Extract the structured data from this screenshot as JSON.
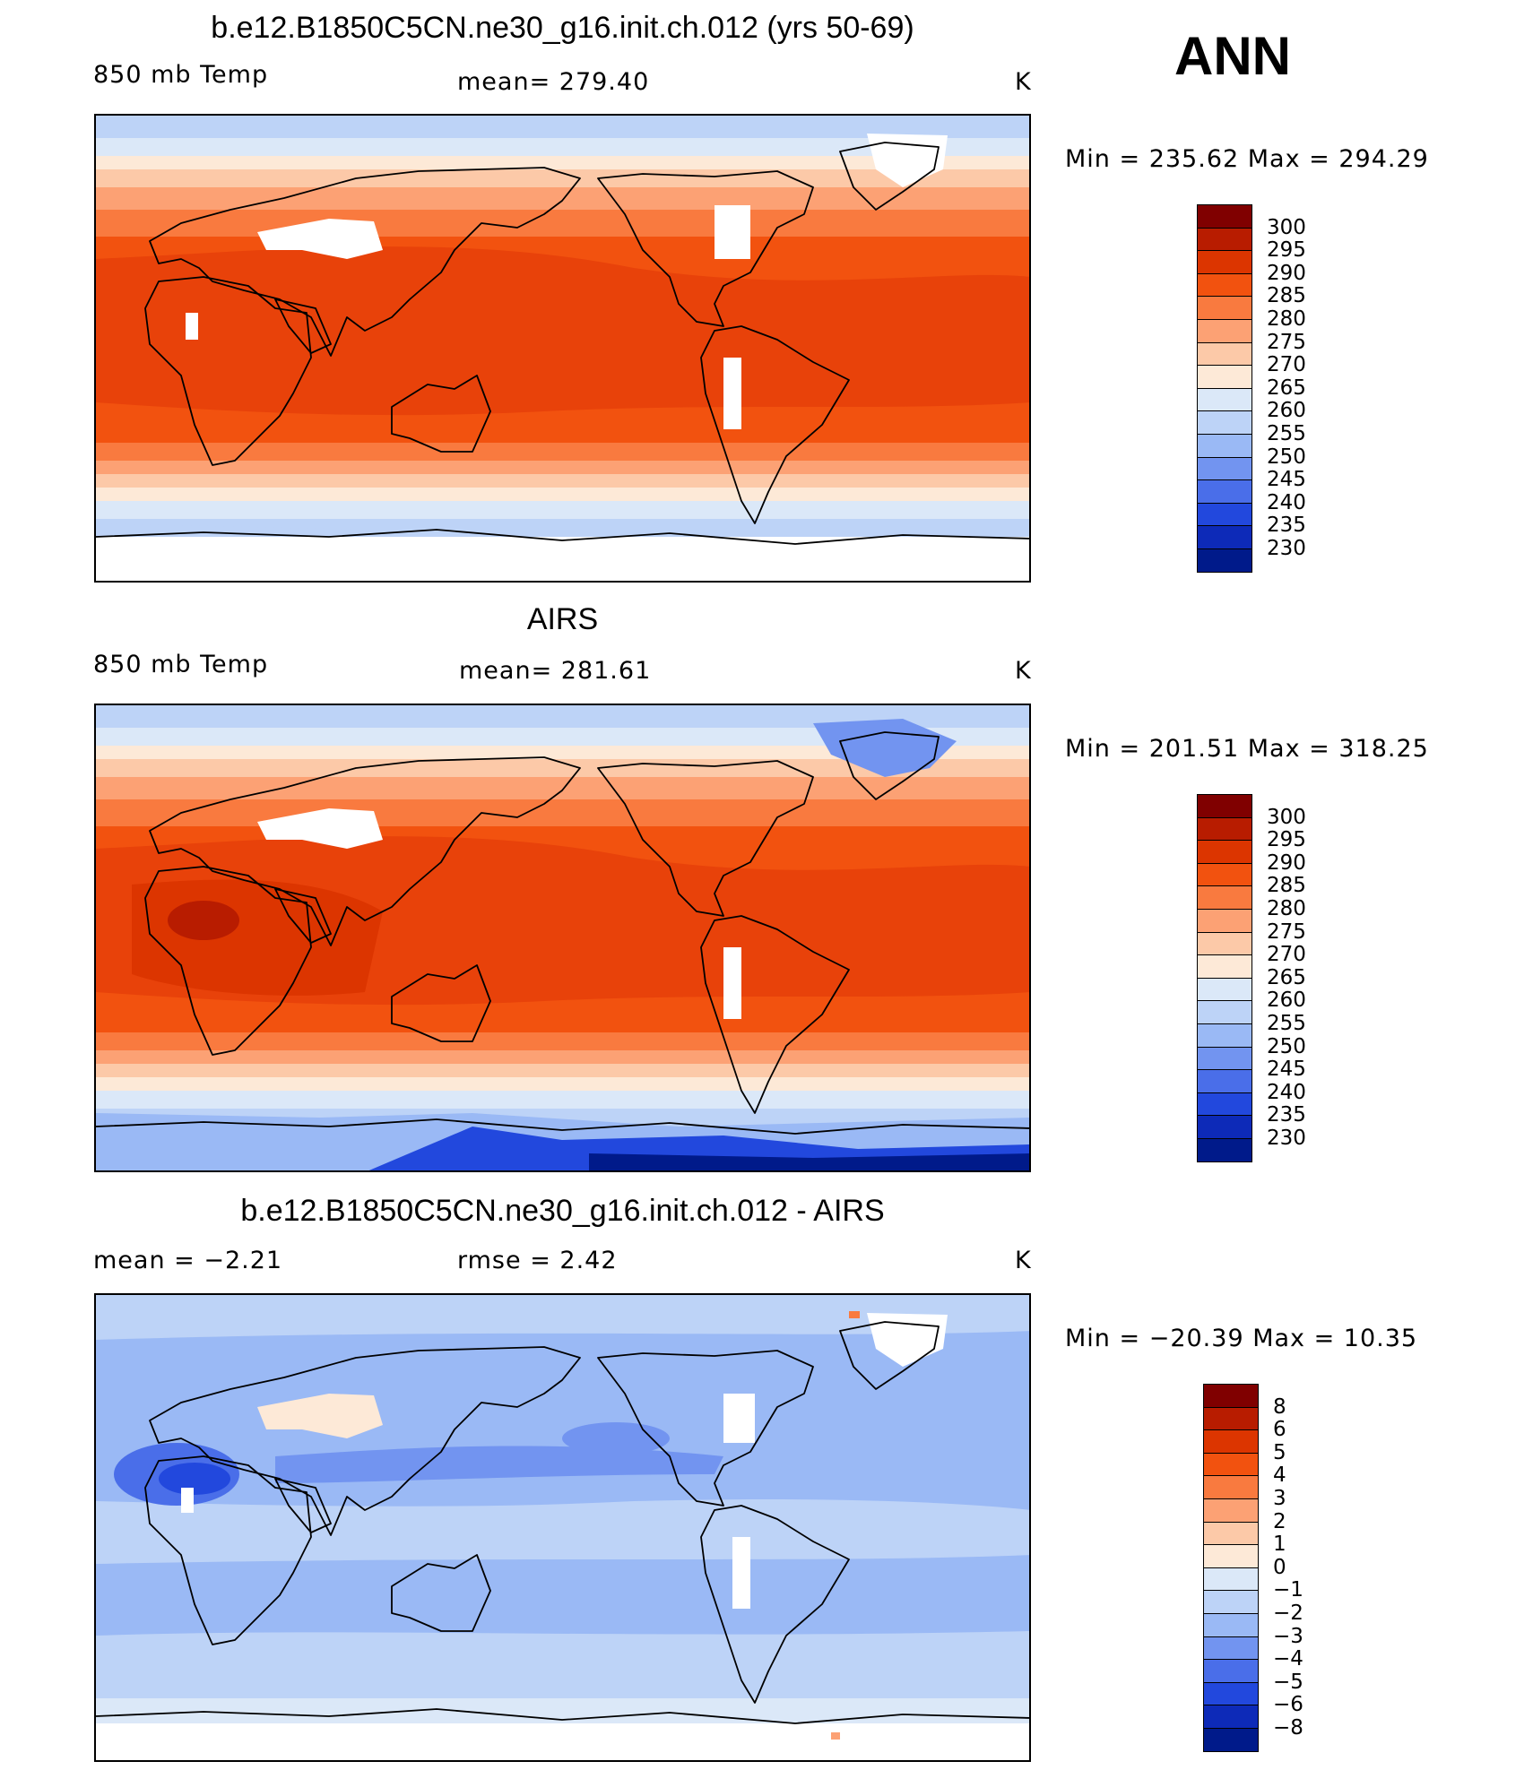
{
  "header": {
    "season": "ANN"
  },
  "panels": [
    {
      "id": "model",
      "title": "b.e12.B1850C5CN.ne30_g16.init.ch.012 (yrs 50-69)",
      "left_label": "850 mb Temp",
      "center_label": "mean=  279.40",
      "units": "K",
      "minmax": "Min  =  235.62  Max  =  294.29",
      "colorbar": {
        "ticks": [
          "300",
          "295",
          "290",
          "285",
          "280",
          "275",
          "270",
          "265",
          "260",
          "255",
          "250",
          "245",
          "240",
          "235",
          "230"
        ],
        "colors": [
          "#800000",
          "#b81c00",
          "#dc3500",
          "#f2520f",
          "#f97a3f",
          "#fca174",
          "#fcc9a8",
          "#fde9d7",
          "#dbe8f8",
          "#bdd3f7",
          "#9ab9f5",
          "#7294f0",
          "#4a6ee9",
          "#2248dd",
          "#0d2ab8",
          "#001a8a"
        ]
      },
      "map": {
        "palette": "warm",
        "field": "model"
      }
    },
    {
      "id": "obs",
      "title": "AIRS",
      "left_label": "850 mb Temp",
      "center_label": "mean=  281.61",
      "units": "K",
      "minmax": "Min  =  201.51  Max  =  318.25",
      "colorbar": {
        "ticks": [
          "300",
          "295",
          "290",
          "285",
          "280",
          "275",
          "270",
          "265",
          "260",
          "255",
          "250",
          "245",
          "240",
          "235",
          "230"
        ],
        "colors": [
          "#800000",
          "#b81c00",
          "#dc3500",
          "#f2520f",
          "#f97a3f",
          "#fca174",
          "#fcc9a8",
          "#fde9d7",
          "#dbe8f8",
          "#bdd3f7",
          "#9ab9f5",
          "#7294f0",
          "#4a6ee9",
          "#2248dd",
          "#0d2ab8",
          "#001a8a"
        ]
      },
      "map": {
        "palette": "warm",
        "field": "obs"
      }
    },
    {
      "id": "diff",
      "title": "b.e12.B1850C5CN.ne30_g16.init.ch.012 - AIRS",
      "left_label": "mean  =    −2.21",
      "center_label": "rmse  =     2.42",
      "units": "K",
      "minmax": "Min  =  −20.39  Max  =    10.35",
      "colorbar": {
        "ticks": [
          "8",
          "6",
          "5",
          "4",
          "3",
          "2",
          "1",
          "0",
          "−1",
          "−2",
          "−3",
          "−4",
          "−5",
          "−6",
          "−8"
        ],
        "colors": [
          "#800000",
          "#b81c00",
          "#dc3500",
          "#f2520f",
          "#f97a3f",
          "#fca174",
          "#fcc9a8",
          "#fde9d7",
          "#dbe8f8",
          "#bdd3f7",
          "#9ab9f5",
          "#7294f0",
          "#4a6ee9",
          "#2248dd",
          "#0d2ab8",
          "#001a8a"
        ]
      },
      "map": {
        "palette": "cool",
        "field": "diff"
      }
    }
  ]
}
